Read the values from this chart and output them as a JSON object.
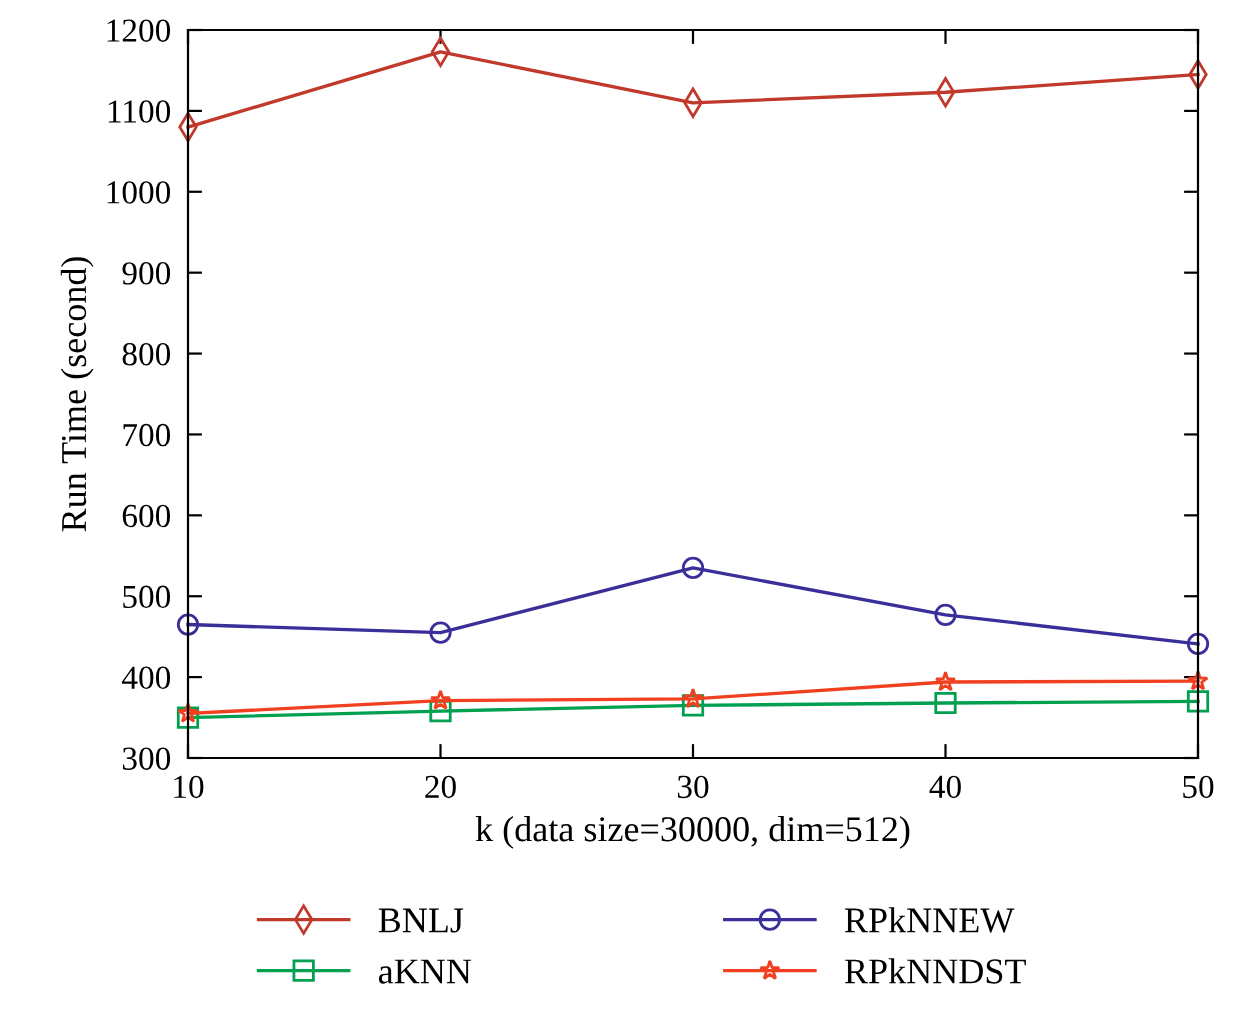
{
  "chart_data": {
    "type": "line",
    "xlabel": "k (data size=30000, dim=512)",
    "ylabel": "Run Time (second)",
    "x": [
      10,
      20,
      30,
      40,
      50
    ],
    "series": [
      {
        "name": "BNLJ",
        "color": "#c0392b",
        "marker": "diamond",
        "values": [
          1080,
          1173,
          1110,
          1123,
          1145
        ]
      },
      {
        "name": "aKNN",
        "color": "#00a050",
        "marker": "square",
        "values": [
          350,
          358,
          365,
          368,
          370
        ]
      },
      {
        "name": "RPkNNEW",
        "color": "#3a2f9a",
        "marker": "circle",
        "values": [
          465,
          455,
          535,
          477,
          441
        ]
      },
      {
        "name": "RPkNNDST",
        "color": "#f04020",
        "marker": "star",
        "values": [
          355,
          371,
          373,
          394,
          395
        ]
      }
    ],
    "xlim": [
      10,
      50
    ],
    "xticks": [
      10,
      20,
      30,
      40,
      50
    ],
    "ylim": [
      300,
      1200
    ],
    "yticks": [
      300,
      400,
      500,
      600,
      700,
      800,
      900,
      1000,
      1100,
      1200
    ],
    "grid": false,
    "legend": "bottom",
    "line_style": "solid"
  }
}
